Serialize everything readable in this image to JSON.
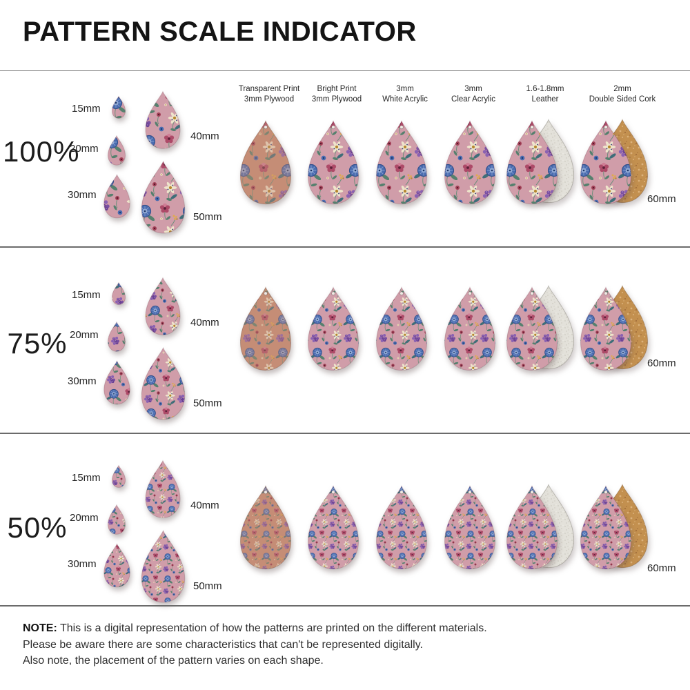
{
  "title": "PATTERN SCALE INDICATOR",
  "header_columns": [
    {
      "line1": "Transparent Print",
      "line2": "3mm Plywood"
    },
    {
      "line1": "Bright Print",
      "line2": "3mm Plywood"
    },
    {
      "line1": "3mm",
      "line2": "White Acrylic"
    },
    {
      "line1": "3mm",
      "line2": "Clear Acrylic"
    },
    {
      "line1": "1.6-1.8mm",
      "line2": "Leather"
    },
    {
      "line1": "2mm",
      "line2": "Double Sided Cork"
    }
  ],
  "rows": [
    {
      "scale_label": "100%",
      "pattern_scale": 1,
      "size_labels": {
        "s15": "15mm",
        "s20": "20mm",
        "s30": "30mm",
        "s40": "40mm",
        "s50": "50mm"
      },
      "main_label": "60mm"
    },
    {
      "scale_label": "75%",
      "pattern_scale": 0.75,
      "size_labels": {
        "s15": "15mm",
        "s20": "20mm",
        "s30": "30mm",
        "s40": "40mm",
        "s50": "50mm"
      },
      "main_label": "60mm"
    },
    {
      "scale_label": "50%",
      "pattern_scale": 0.5,
      "size_labels": {
        "s15": "15mm",
        "s20": "20mm",
        "s30": "30mm",
        "s40": "40mm",
        "s50": "50mm"
      },
      "main_label": "60mm"
    }
  ],
  "note": {
    "label": "NOTE:",
    "line1": "This is a digital representation of how the patterns are printed on the different materials.",
    "line2": "Please be aware there are some characteristics that can't be represented digitally.",
    "line3": "Also note, the placement of the pattern varies on each shape."
  },
  "palette": {
    "pink_bg": "#d09da9",
    "plywood_bg": "#c68e77",
    "cork_bg": "#c3904f",
    "cork_light": "#dcb27c",
    "cork_dark": "#a4703c",
    "leather_bg": "#e3e1da",
    "blue": "#4a6cb0",
    "blue_dark": "#32508c",
    "blue_light": "#93abd6",
    "blue_deep": "#1d3668",
    "magenta": "#ad4a68",
    "magenta_light": "#cf7d95",
    "magenta_dark": "#5c2038",
    "cream": "#eee4cb",
    "yellow": "#dfa94e",
    "yellow_deep": "#b5872f",
    "navy": "#2c3d77",
    "purple1": "#7a4fa2",
    "purple2": "#8a61b2",
    "purple3": "#693f93",
    "purple_light": "#d9cce8",
    "red": "#a23f56",
    "red_dark": "#4f1728",
    "leaf_green": "#56806e",
    "leaf_teal": "#3f6e79",
    "stem": "#6d8e7a"
  }
}
